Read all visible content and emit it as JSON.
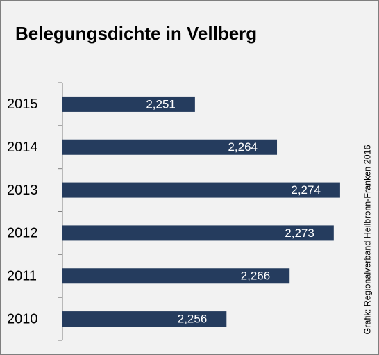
{
  "chart_data": {
    "type": "bar",
    "orientation": "horizontal",
    "title": "Belegungsdichte in Vellberg",
    "source": "Grafik: Regionalverband Heilbronn-Franken 2016",
    "categories": [
      "2015",
      "2014",
      "2013",
      "2012",
      "2011",
      "2010"
    ],
    "values": [
      2.251,
      2.264,
      2.274,
      2.273,
      2.266,
      2.256
    ],
    "value_labels": [
      "2,251",
      "2,264",
      "2,274",
      "2,273",
      "2,266",
      "2,256"
    ],
    "color": "#253c5e",
    "xlim": [
      2.23,
      2.275
    ]
  }
}
